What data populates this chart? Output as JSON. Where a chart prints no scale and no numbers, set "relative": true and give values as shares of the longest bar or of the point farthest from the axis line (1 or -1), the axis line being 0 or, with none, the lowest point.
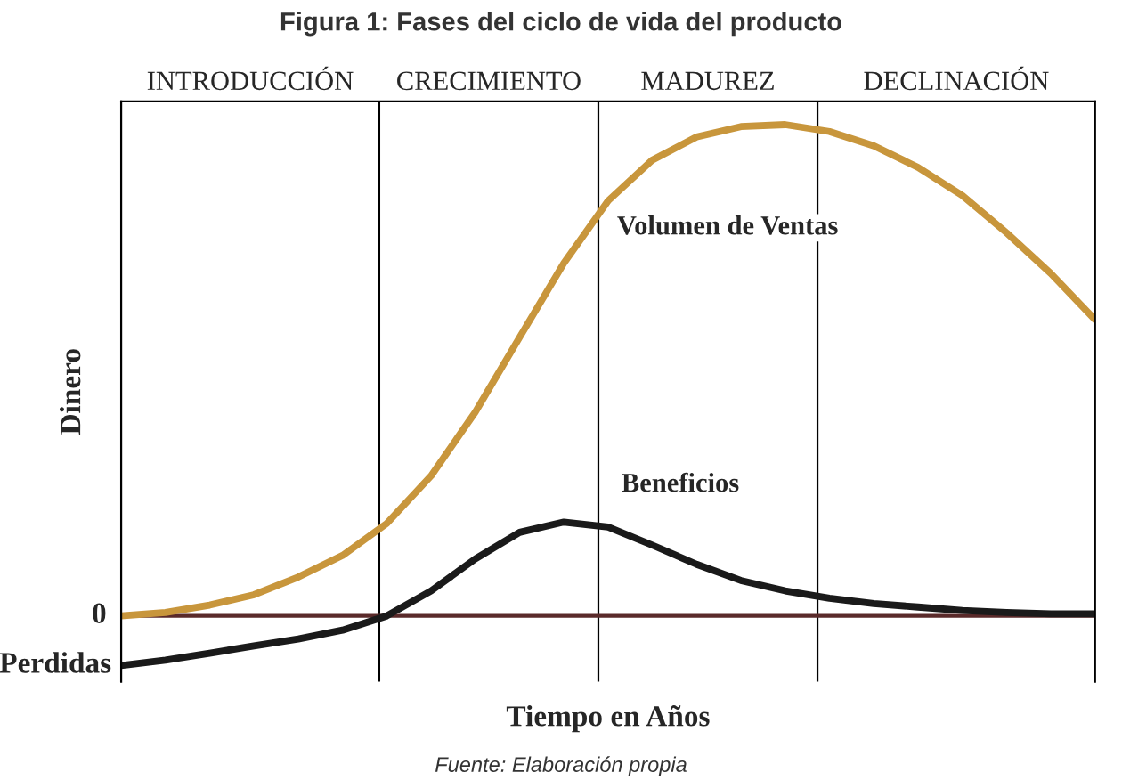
{
  "chart_data": {
    "type": "line",
    "relative": true,
    "title": "Figura 1: Fases del ciclo de vida del producto",
    "xlabel": "Tiempo en Años",
    "ylabel": "Dinero",
    "categories": [
      null,
      null,
      null,
      null,
      null,
      null,
      null,
      null,
      null,
      null,
      null,
      null,
      null,
      null,
      null,
      null,
      null,
      null,
      null,
      null,
      null,
      null,
      null
    ],
    "series": [
      {
        "name": "Volumen de Ventas",
        "color": "#c8963c",
        "values": [
          0,
          0.007,
          0.022,
          0.043,
          0.079,
          0.123,
          0.188,
          0.285,
          0.415,
          0.567,
          0.718,
          0.845,
          0.928,
          0.975,
          0.996,
          1.0,
          0.986,
          0.957,
          0.913,
          0.856,
          0.78,
          0.697,
          0.603
        ]
      },
      {
        "name": "Beneficios",
        "color": "#1a1a1a",
        "values": [
          -0.101,
          -0.09,
          -0.076,
          -0.061,
          -0.047,
          -0.029,
          0,
          0.051,
          0.116,
          0.17,
          0.191,
          0.181,
          0.144,
          0.105,
          0.072,
          0.051,
          0.036,
          0.025,
          0.018,
          0.011,
          0.007,
          0.004,
          0.004
        ]
      }
    ],
    "annotations": [
      "Fuente: Elaboración propia",
      "0",
      "Perdidas",
      "INTRODUCCIÓN",
      "CRECIMIENTO",
      "MADUREZ",
      "DECLINACIÓN"
    ],
    "line_style": "solid",
    "marker": "none",
    "legend": false
  }
}
